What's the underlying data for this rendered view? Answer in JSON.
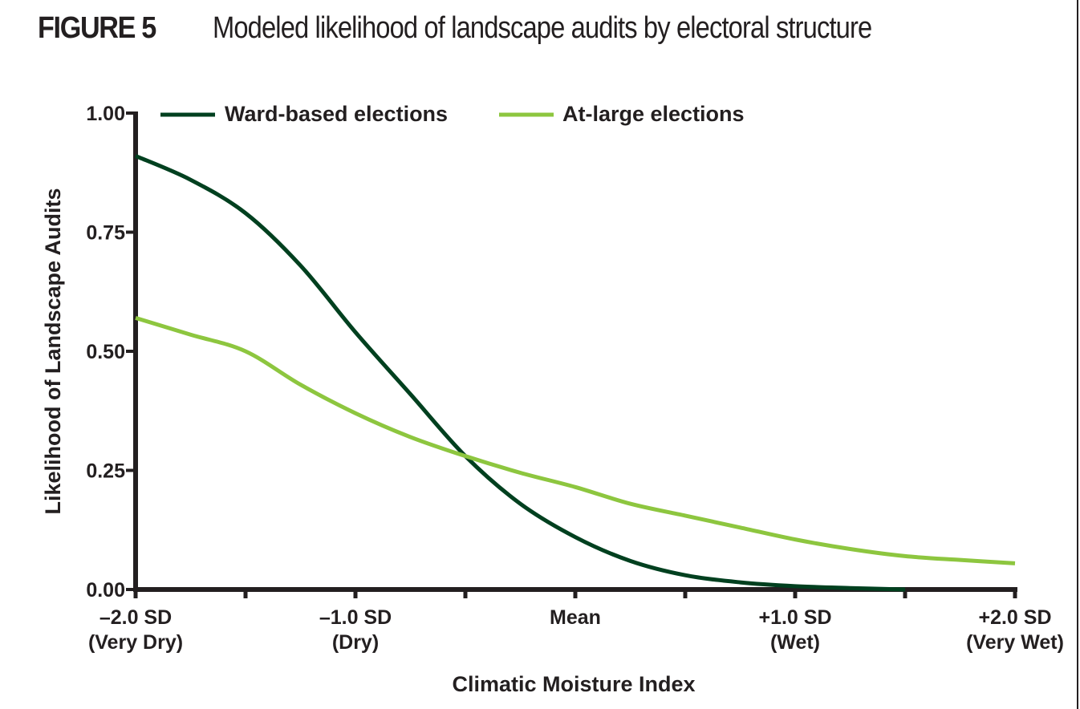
{
  "figure": {
    "label": "FIGURE 5",
    "title": "Modeled likelihood of landscape audits by electoral structure"
  },
  "chart_data": {
    "type": "line",
    "title": "Modeled likelihood of landscape audits by electoral structure",
    "xlabel": "Climatic Moisture Index",
    "ylabel": "Likelihood of Landscape Audits",
    "xlim": [
      -2,
      2
    ],
    "ylim": [
      0,
      1
    ],
    "grid": false,
    "legend_position": "top",
    "x_ticks": [
      -2,
      -1.5,
      -1,
      -0.5,
      0,
      0.5,
      1,
      1.5,
      2
    ],
    "x_tick_labels": [
      {
        "value": -2,
        "line1": "–2.0 SD",
        "line2": "(Very Dry)"
      },
      {
        "value": -1,
        "line1": "–1.0 SD",
        "line2": "(Dry)"
      },
      {
        "value": 0,
        "line1": "Mean",
        "line2": ""
      },
      {
        "value": 1,
        "line1": "+1.0 SD",
        "line2": "(Wet)"
      },
      {
        "value": 2,
        "line1": "+2.0 SD",
        "line2": "(Very Wet)"
      }
    ],
    "y_ticks": [
      0,
      0.25,
      0.5,
      0.75,
      1.0
    ],
    "y_tick_labels": [
      "0.00",
      "0.25",
      "0.50",
      "0.75",
      "1.00"
    ],
    "x": [
      -2,
      -1.75,
      -1.5,
      -1.25,
      -1,
      -0.75,
      -0.5,
      -0.25,
      0,
      0.25,
      0.5,
      0.75,
      1,
      1.25,
      1.5,
      1.75,
      2
    ],
    "series": [
      {
        "name": "Ward-based elections",
        "color": "#00401f",
        "values": [
          0.91,
          0.86,
          0.79,
          0.68,
          0.54,
          0.41,
          0.28,
          0.18,
          0.11,
          0.06,
          0.03,
          0.015,
          0.007,
          0.003,
          0.0,
          null,
          null
        ]
      },
      {
        "name": "At-large elections",
        "color": "#8dc63f",
        "values": [
          0.57,
          0.535,
          0.5,
          0.43,
          0.37,
          0.32,
          0.28,
          0.245,
          0.215,
          0.18,
          0.155,
          0.13,
          0.105,
          0.085,
          0.07,
          0.062,
          0.055
        ]
      }
    ]
  }
}
